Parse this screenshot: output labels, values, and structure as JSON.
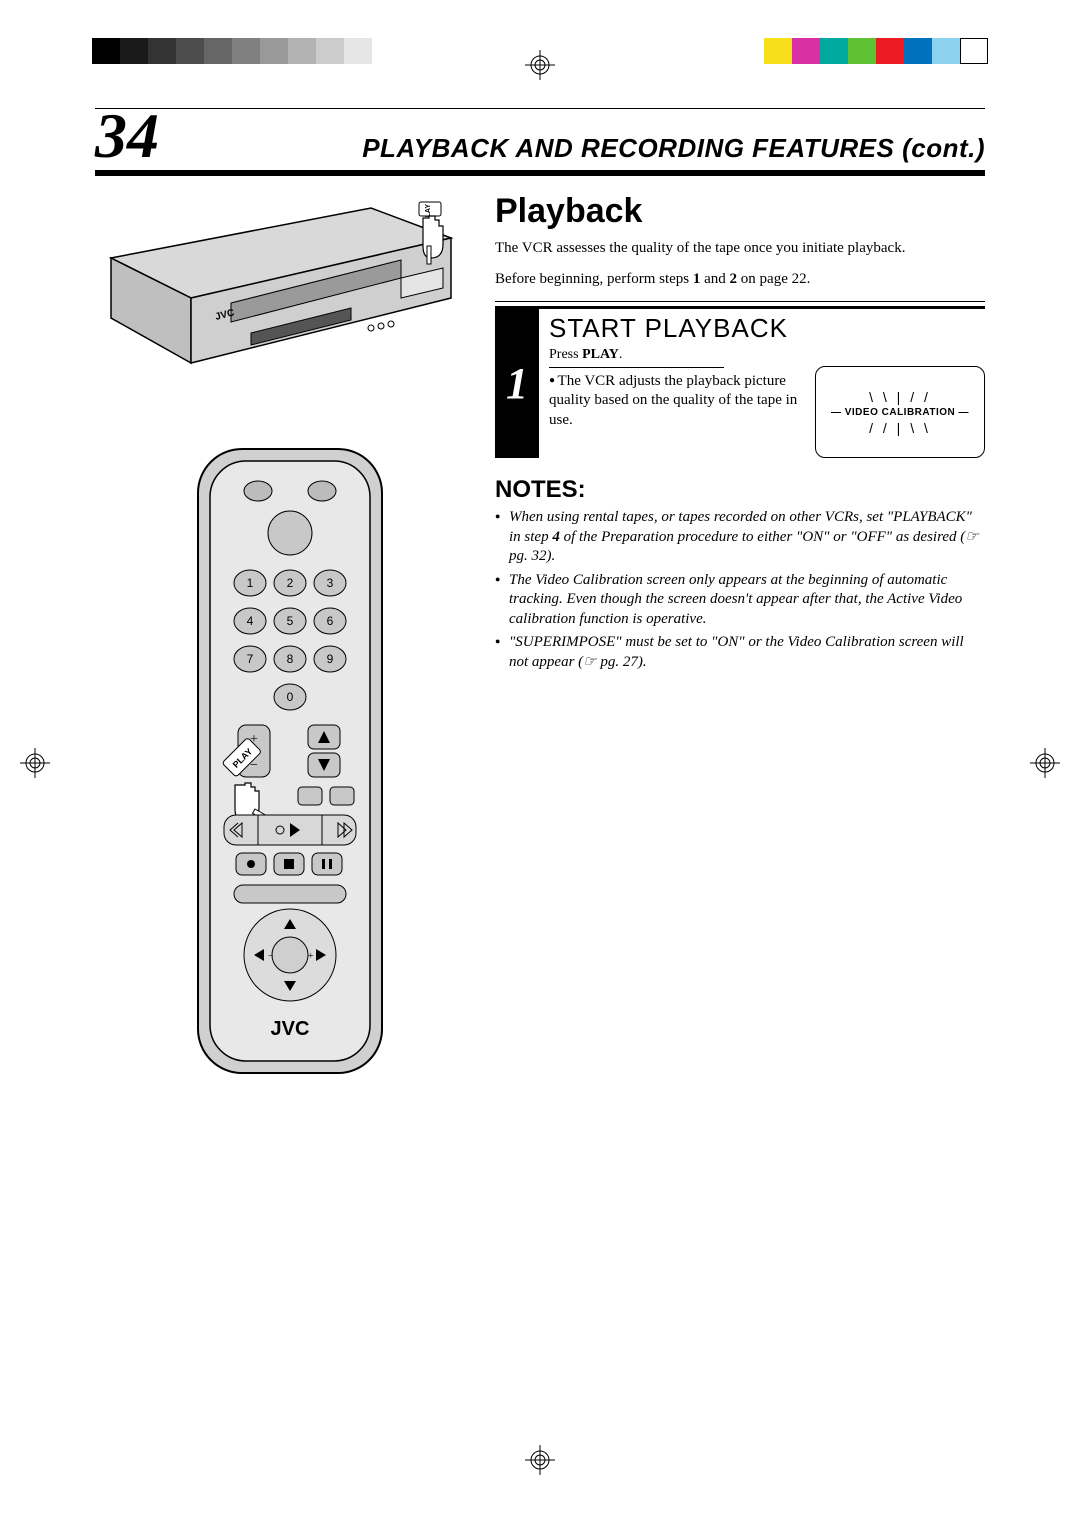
{
  "print_marks": {
    "gray_swatches": [
      "#000000",
      "#1a1a1a",
      "#333333",
      "#4d4d4d",
      "#666666",
      "#808080",
      "#999999",
      "#b3b3b3",
      "#cccccc",
      "#e6e6e6"
    ],
    "color_swatches": [
      "#f7e01a",
      "#d930a6",
      "#00a99d",
      "#5ec232",
      "#ed1c24",
      "#0071bc",
      "#8cd3ef",
      "#ffffff"
    ]
  },
  "page": {
    "number": "34",
    "header": "PLAYBACK AND RECORDING FEATURES (cont.)"
  },
  "illustrations": {
    "vcr_brand": "JVC",
    "play_label": "PLAY",
    "remote_brand": "JVC",
    "remote_keys": [
      "1",
      "2",
      "3",
      "4",
      "5",
      "6",
      "7",
      "8",
      "9",
      "0"
    ]
  },
  "content": {
    "title": "Playback",
    "intro1": "The VCR assesses the quality of the tape once you initiate playback.",
    "intro2_a": "Before beginning, perform steps ",
    "intro2_b1": "1",
    "intro2_mid": " and ",
    "intro2_b2": "2",
    "intro2_c": " on page 22.",
    "step": {
      "num": "1",
      "heading": "START PLAYBACK",
      "press_pre": "Press ",
      "press_bold": "PLAY",
      "press_post": ".",
      "bullet": "The VCR adjusts the playback picture quality based on the quality of the tape in use."
    },
    "calibration": {
      "rays_top": "\\  \\  |  /  /",
      "label": "— VIDEO CALIBRATION —",
      "rays_bottom": "/  /  |  \\  \\"
    },
    "notes_heading": "NOTES:",
    "notes": [
      {
        "text": "When using rental tapes, or tapes recorded on other VCRs, set \"PLAYBACK\" in step <b>4</b> of the Preparation procedure to either \"ON\" or \"OFF\" as desired (☞ pg. 32)."
      },
      {
        "text": "The Video Calibration screen only appears at the beginning of automatic tracking. Even though the screen doesn't appear after that, the Active Video calibration function is operative."
      },
      {
        "text": "\"SUPERIMPOSE\" must be set to \"ON\" or the Video Calibration screen will not appear (☞ pg. 27)."
      }
    ]
  }
}
